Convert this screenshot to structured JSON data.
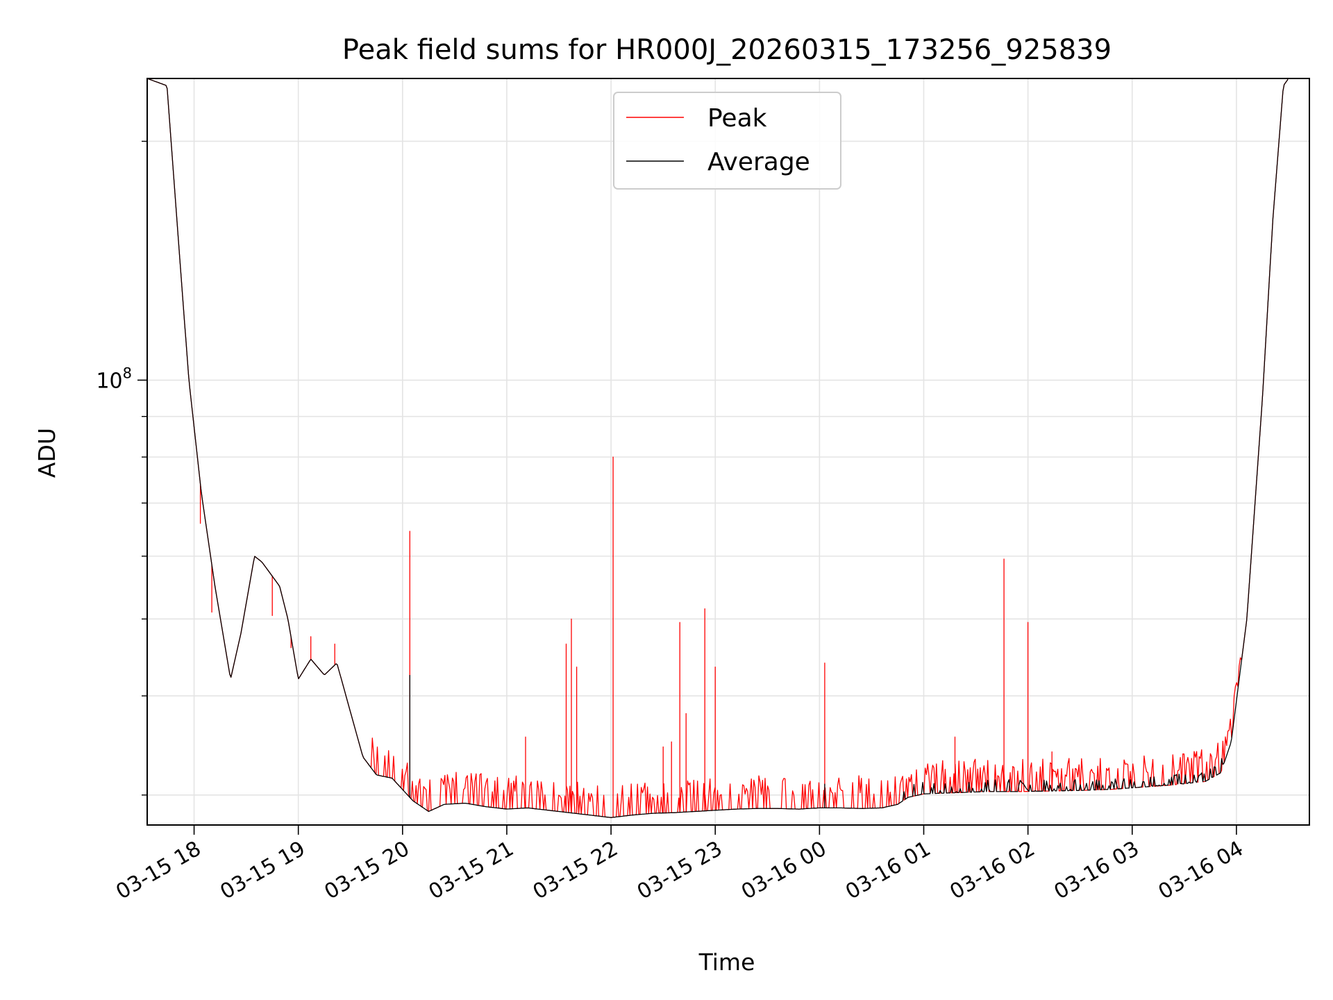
{
  "chart_data": {
    "type": "line",
    "title": "Peak field sums for HR000J_20260315_173256_925839",
    "xlabel": "Time",
    "ylabel": "ADU",
    "y_scale": "log",
    "ylim": [
      27500000,
      240000000
    ],
    "y_major_ticks": [
      {
        "value": 100000000,
        "base": "10",
        "exp": "8"
      }
    ],
    "y_minor_ticks": [
      30000000,
      40000000,
      50000000,
      60000000,
      70000000,
      80000000,
      90000000,
      200000000
    ],
    "xlim_hours": [
      17.55,
      4.7
    ],
    "x_ticks": [
      {
        "hour": 18,
        "label": "03-15 18"
      },
      {
        "hour": 19,
        "label": "03-15 19"
      },
      {
        "hour": 20,
        "label": "03-15 20"
      },
      {
        "hour": 21,
        "label": "03-15 21"
      },
      {
        "hour": 22,
        "label": "03-15 22"
      },
      {
        "hour": 23,
        "label": "03-15 23"
      },
      {
        "hour": 24,
        "label": "03-16 00"
      },
      {
        "hour": 25,
        "label": "03-16 01"
      },
      {
        "hour": 26,
        "label": "03-16 02"
      },
      {
        "hour": 27,
        "label": "03-16 03"
      },
      {
        "hour": 28,
        "label": "03-16 04"
      }
    ],
    "grid": true,
    "legend": {
      "position": "top-center",
      "entries": [
        {
          "name": "Peak",
          "color": "#ff0000"
        },
        {
          "name": "Average",
          "color": "#000000"
        }
      ]
    },
    "series": [
      {
        "name": "Average",
        "color": "#000000",
        "points": [
          [
            17.55,
            240000000
          ],
          [
            17.74,
            235000000
          ],
          [
            17.85,
            150000000
          ],
          [
            17.95,
            100000000
          ],
          [
            18.07,
            72000000
          ],
          [
            18.2,
            55000000
          ],
          [
            18.35,
            42000000
          ],
          [
            18.45,
            48000000
          ],
          [
            18.58,
            60000000
          ],
          [
            18.65,
            59000000
          ],
          [
            18.82,
            55000000
          ],
          [
            18.9,
            50000000
          ],
          [
            19.0,
            42000000
          ],
          [
            19.12,
            44500000
          ],
          [
            19.25,
            42500000
          ],
          [
            19.37,
            44000000
          ],
          [
            19.48,
            39000000
          ],
          [
            19.62,
            33500000
          ],
          [
            19.75,
            31800000
          ],
          [
            19.9,
            31500000
          ],
          [
            20.1,
            29500000
          ],
          [
            20.25,
            28600000
          ],
          [
            20.4,
            29200000
          ],
          [
            20.6,
            29300000
          ],
          [
            20.8,
            29000000
          ],
          [
            21.0,
            28800000
          ],
          [
            21.2,
            28900000
          ],
          [
            21.4,
            28700000
          ],
          [
            21.6,
            28500000
          ],
          [
            21.8,
            28300000
          ],
          [
            22.0,
            28100000
          ],
          [
            22.2,
            28300000
          ],
          [
            22.4,
            28450000
          ],
          [
            22.6,
            28500000
          ],
          [
            22.8,
            28600000
          ],
          [
            23.0,
            28700000
          ],
          [
            23.2,
            28800000
          ],
          [
            23.4,
            28850000
          ],
          [
            23.6,
            28850000
          ],
          [
            23.8,
            28800000
          ],
          [
            24.0,
            28900000
          ],
          [
            24.2,
            28900000
          ],
          [
            24.4,
            28850000
          ],
          [
            24.6,
            28900000
          ],
          [
            24.75,
            29200000
          ],
          [
            24.85,
            29800000
          ],
          [
            25.0,
            30100000
          ],
          [
            25.3,
            30200000
          ],
          [
            25.6,
            30300000
          ],
          [
            25.9,
            30300000
          ],
          [
            26.2,
            30350000
          ],
          [
            26.5,
            30400000
          ],
          [
            26.8,
            30500000
          ],
          [
            27.1,
            30700000
          ],
          [
            27.4,
            30900000
          ],
          [
            27.7,
            31200000
          ],
          [
            27.85,
            32000000
          ],
          [
            27.95,
            35000000
          ],
          [
            28.1,
            50000000
          ],
          [
            28.25,
            95000000
          ],
          [
            28.35,
            160000000
          ],
          [
            28.45,
            235000000
          ],
          [
            28.5,
            240000000
          ]
        ]
      },
      {
        "name": "Peak",
        "color": "#ff0000",
        "baseline_offset": 1.04,
        "spikes": [
          [
            18.06,
            66000000
          ],
          [
            18.17,
            51000000
          ],
          [
            18.75,
            50500000
          ],
          [
            18.93,
            46000000
          ],
          [
            19.12,
            47500000
          ],
          [
            19.35,
            46500000
          ],
          [
            20.07,
            64500000
          ],
          [
            21.18,
            35500000
          ],
          [
            21.57,
            46500000
          ],
          [
            21.62,
            50000000
          ],
          [
            21.67,
            43500000
          ],
          [
            22.02,
            80000000
          ],
          [
            22.5,
            34500000
          ],
          [
            22.58,
            35000000
          ],
          [
            22.66,
            49500000
          ],
          [
            22.72,
            38000000
          ],
          [
            22.9,
            51500000
          ],
          [
            23.0,
            43500000
          ],
          [
            24.05,
            44000000
          ],
          [
            25.3,
            35500000
          ],
          [
            25.77,
            59500000
          ],
          [
            26.0,
            49500000
          ],
          [
            26.23,
            34000000
          ]
        ]
      }
    ]
  }
}
